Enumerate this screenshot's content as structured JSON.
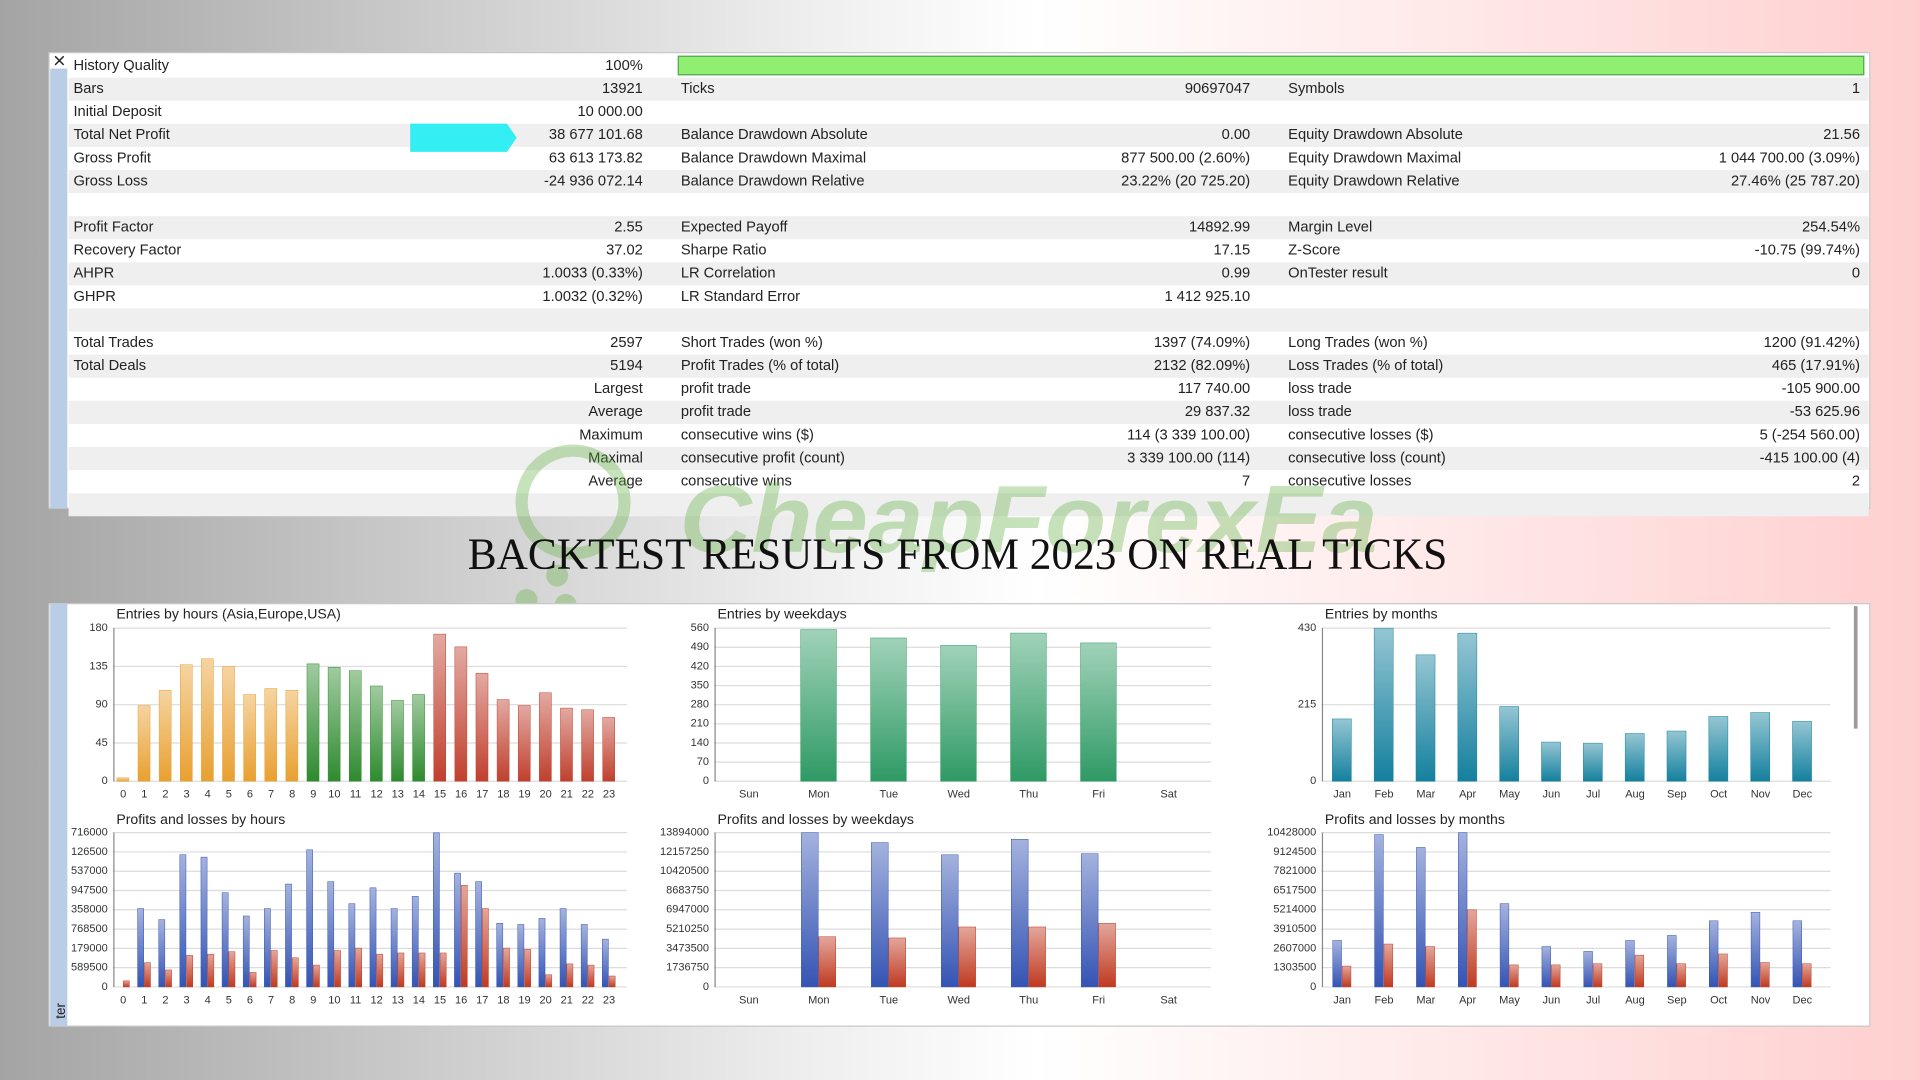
{
  "side_tab": "ter",
  "heading": "BACKTEST RESULTS FROM 2023 ON REAL TICKS",
  "watermark": "CheapForexEa",
  "report": {
    "history_quality_bar": 100,
    "sections": [
      [
        {
          "left": {
            "label": "History Quality",
            "value": "100%"
          }
        },
        {
          "left": {
            "label": "Bars",
            "value": "13921"
          },
          "mid": {
            "label": "Ticks",
            "value": "90697047"
          },
          "right": {
            "label": "Symbols",
            "value": "1"
          }
        },
        {
          "left": {
            "label": "Initial Deposit",
            "value": "10 000.00"
          }
        },
        {
          "left": {
            "label": "Total Net Profit",
            "value": "38 677 101.68"
          },
          "mid": {
            "label": "Balance Drawdown Absolute",
            "value": "0.00"
          },
          "right": {
            "label": "Equity Drawdown Absolute",
            "value": "21.56"
          }
        },
        {
          "left": {
            "label": "Gross Profit",
            "value": "63 613 173.82"
          },
          "mid": {
            "label": "Balance Drawdown Maximal",
            "value": "877 500.00 (2.60%)"
          },
          "right": {
            "label": "Equity Drawdown Maximal",
            "value": "1 044 700.00 (3.09%)"
          }
        },
        {
          "left": {
            "label": "Gross Loss",
            "value": "-24 936 072.14"
          },
          "mid": {
            "label": "Balance Drawdown Relative",
            "value": "23.22% (20 725.20)"
          },
          "right": {
            "label": "Equity Drawdown Relative",
            "value": "27.46% (25 787.20)"
          }
        }
      ],
      [
        {
          "left": {
            "label": "Profit Factor",
            "value": "2.55"
          },
          "mid": {
            "label": "Expected Payoff",
            "value": "14892.99"
          },
          "right": {
            "label": "Margin Level",
            "value": "254.54%"
          }
        },
        {
          "left": {
            "label": "Recovery Factor",
            "value": "37.02"
          },
          "mid": {
            "label": "Sharpe Ratio",
            "value": "17.15"
          },
          "right": {
            "label": "Z-Score",
            "value": "-10.75 (99.74%)"
          }
        },
        {
          "left": {
            "label": "AHPR",
            "value": "1.0033 (0.33%)"
          },
          "mid": {
            "label": "LR Correlation",
            "value": "0.99"
          },
          "right": {
            "label": "OnTester result",
            "value": "0"
          }
        },
        {
          "left": {
            "label": "GHPR",
            "value": "1.0032 (0.32%)"
          },
          "mid": {
            "label": "LR Standard Error",
            "value": "1 412 925.10"
          }
        }
      ],
      [
        {
          "left": {
            "label": "Total Trades",
            "value": "2597"
          },
          "mid": {
            "label": "Short Trades (won %)",
            "value": "1397 (74.09%)"
          },
          "right": {
            "label": "Long Trades (won %)",
            "value": "1200 (91.42%)"
          }
        },
        {
          "left": {
            "label": "Total Deals",
            "value": "5194"
          },
          "mid": {
            "label": "Profit Trades (% of total)",
            "value": "2132 (82.09%)"
          },
          "right": {
            "label": "Loss Trades (% of total)",
            "value": "465 (17.91%)"
          }
        },
        {
          "left": {
            "value": "Largest"
          },
          "mid": {
            "label": "profit trade",
            "value": "117 740.00"
          },
          "right": {
            "label": "loss trade",
            "value": "-105 900.00"
          }
        },
        {
          "left": {
            "value": "Average"
          },
          "mid": {
            "label": "profit trade",
            "value": "29 837.32"
          },
          "right": {
            "label": "loss trade",
            "value": "-53 625.96"
          }
        },
        {
          "left": {
            "value": "Maximum"
          },
          "mid": {
            "label": "consecutive wins ($)",
            "value": "114 (3 339 100.00)"
          },
          "right": {
            "label": "consecutive losses ($)",
            "value": "5 (-254 560.00)"
          }
        },
        {
          "left": {
            "value": "Maximal"
          },
          "mid": {
            "label": "consecutive profit (count)",
            "value": "3 339 100.00 (114)"
          },
          "right": {
            "label": "consecutive loss (count)",
            "value": "-415 100.00 (4)"
          }
        },
        {
          "left": {
            "value": "Average"
          },
          "mid": {
            "label": "consecutive wins",
            "value": "7"
          },
          "right": {
            "label": "consecutive losses",
            "value": "2"
          }
        }
      ]
    ]
  },
  "chart_data": [
    {
      "type": "bar",
      "title": "Entries by hours (Asia,Europe,USA)",
      "categories": [
        "0",
        "1",
        "2",
        "3",
        "4",
        "5",
        "6",
        "7",
        "8",
        "9",
        "10",
        "11",
        "12",
        "13",
        "14",
        "15",
        "16",
        "17",
        "18",
        "19",
        "20",
        "21",
        "22",
        "23"
      ],
      "values": [
        4,
        89,
        107,
        137,
        144,
        135,
        102,
        109,
        107,
        138,
        134,
        130,
        112,
        95,
        102,
        173,
        158,
        127,
        96,
        89,
        104,
        86,
        84,
        75
      ],
      "colors": [
        "#e8a030",
        "#e8a030",
        "#e8a030",
        "#e8a030",
        "#e8a030",
        "#e8a030",
        "#e8a030",
        "#e8a030",
        "#e8a030",
        "#2e8b2e",
        "#2e8b2e",
        "#2e8b2e",
        "#2e8b2e",
        "#2e8b2e",
        "#2e8b2e",
        "#c0402e",
        "#c0402e",
        "#c0402e",
        "#c0402e",
        "#c0402e",
        "#c0402e",
        "#c0402e",
        "#c0402e",
        "#c0402e"
      ],
      "ylim": [
        0,
        180
      ],
      "yticks": [
        0,
        45,
        90,
        135,
        180
      ],
      "grid": true
    },
    {
      "type": "bar",
      "title": "Entries by weekdays",
      "categories": [
        "Sun",
        "Mon",
        "Tue",
        "Wed",
        "Thu",
        "Fri",
        "Sat"
      ],
      "values": [
        0,
        555,
        524,
        497,
        542,
        506,
        0
      ],
      "color": "#2e9a64",
      "ylim": [
        0,
        560
      ],
      "yticks": [
        0,
        70,
        140,
        210,
        280,
        350,
        420,
        490,
        560
      ],
      "grid": true
    },
    {
      "type": "bar",
      "title": "Entries by months",
      "categories": [
        "Jan",
        "Feb",
        "Mar",
        "Apr",
        "May",
        "Jun",
        "Jul",
        "Aug",
        "Sep",
        "Oct",
        "Nov",
        "Dec"
      ],
      "values": [
        175,
        430,
        355,
        416,
        210,
        110,
        107,
        134,
        141,
        182,
        193,
        168
      ],
      "color": "#14809e",
      "ylim": [
        0,
        430
      ],
      "yticks": [
        0,
        215,
        430
      ],
      "grid": true
    },
    {
      "type": "bar",
      "title": "Profits and losses by hours",
      "categories": [
        "0",
        "1",
        "2",
        "3",
        "4",
        "5",
        "6",
        "7",
        "8",
        "9",
        "10",
        "11",
        "12",
        "13",
        "14",
        "15",
        "16",
        "17",
        "18",
        "19",
        "20",
        "21",
        "22",
        "23"
      ],
      "series": [
        {
          "color": "#3454b4",
          "values": [
            0,
            6460000,
            5550000,
            10900000,
            10700000,
            7770000,
            5850000,
            6460000,
            8480000,
            11300000,
            8680000,
            6860000,
            8170000,
            6460000,
            7470000,
            12700000,
            9380000,
            8680000,
            5250000,
            5150000,
            5650000,
            6460000,
            5150000,
            3940000
          ]
        },
        {
          "color": "#c03a20",
          "values": [
            500000,
            2000000,
            1400000,
            2600000,
            2700000,
            2900000,
            1200000,
            3000000,
            2400000,
            1800000,
            3000000,
            3200000,
            2700000,
            2800000,
            2800000,
            2800000,
            8380000,
            6460000,
            3200000,
            3100000,
            1000000,
            1900000,
            1800000,
            900000
          ]
        }
      ],
      "ylim": [
        0,
        12716000
      ],
      "yticks": [
        0,
        {
          "value": 1589500,
          "label": "589500"
        },
        {
          "value": 3179000,
          "label": "179000"
        },
        {
          "value": 4768500,
          "label": "768500"
        },
        {
          "value": 6358000,
          "label": "358000"
        },
        {
          "value": 7947500,
          "label": "947500"
        },
        {
          "value": 9537000,
          "label": "537000"
        },
        {
          "value": 11126500,
          "label": "126500"
        },
        {
          "value": 12716000,
          "label": "716000"
        }
      ],
      "grid": true
    },
    {
      "type": "bar",
      "title": "Profits and losses by weekdays",
      "categories": [
        "Sun",
        "Mon",
        "Tue",
        "Wed",
        "Thu",
        "Fri",
        "Sat"
      ],
      "series": [
        {
          "color": "#3454b4",
          "values": [
            0,
            13890000,
            13000000,
            11900000,
            13300000,
            12000000,
            0
          ]
        },
        {
          "color": "#c03a20",
          "values": [
            0,
            4520000,
            4410000,
            5400000,
            5400000,
            5730000,
            0
          ]
        }
      ],
      "ylim": [
        0,
        13894000
      ],
      "yticks": [
        0,
        1736750,
        3473500,
        5210250,
        6947000,
        8683750,
        10420500,
        12157250,
        13894000
      ],
      "grid": true
    },
    {
      "type": "bar",
      "title": "Profits and losses by months",
      "categories": [
        "Jan",
        "Feb",
        "Mar",
        "Apr",
        "May",
        "Jun",
        "Jul",
        "Aug",
        "Sep",
        "Oct",
        "Nov",
        "Dec"
      ],
      "series": [
        {
          "color": "#3454b4",
          "values": [
            3140000,
            10300000,
            9430000,
            10428000,
            5630000,
            2730000,
            2400000,
            3140000,
            3480000,
            4470000,
            5050000,
            4470000
          ]
        },
        {
          "color": "#c03a20",
          "values": [
            1410000,
            2900000,
            2730000,
            5210000,
            1490000,
            1490000,
            1570000,
            2150000,
            1570000,
            2230000,
            1650000,
            1570000
          ]
        }
      ],
      "ylim": [
        0,
        10428000
      ],
      "yticks": [
        0,
        1303500,
        2607000,
        3910500,
        5214000,
        6517500,
        7821000,
        9124500,
        10428000
      ],
      "grid": true
    }
  ]
}
